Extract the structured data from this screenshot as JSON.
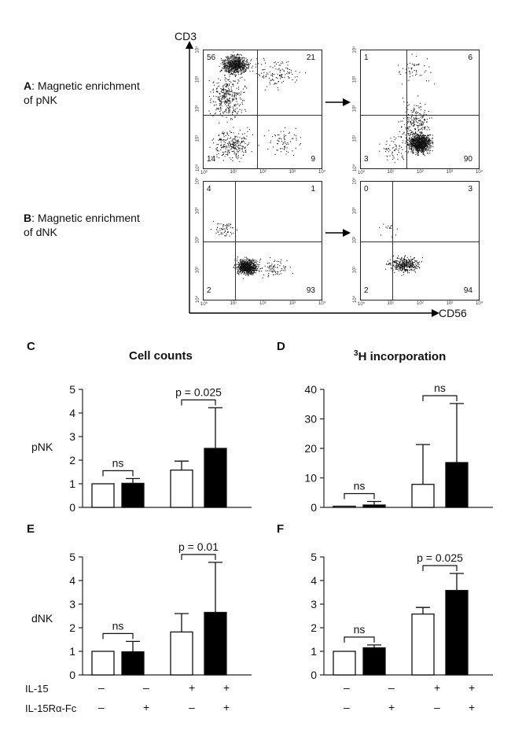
{
  "flow": {
    "y_axis_label": "CD3",
    "x_axis_label": "CD56",
    "row_a_letter": "A",
    "row_a_text_1": ": Magnetic enrichment",
    "row_a_text_2": "of pNK",
    "row_b_letter": "B",
    "row_b_text_1": ": Magnetic enrichment",
    "row_b_text_2": "of dNK",
    "tick_labels": [
      "10⁰",
      "10¹",
      "10²",
      "10³",
      "10⁴"
    ],
    "plots": [
      {
        "quadrants": {
          "ul": "56",
          "ur": "21",
          "ll": "14",
          "lr": "9"
        }
      },
      {
        "quadrants": {
          "ul": "1",
          "ur": "6",
          "ll": "3",
          "lr": "90"
        }
      },
      {
        "quadrants": {
          "ul": "4",
          "ur": "1",
          "ll": "2",
          "lr": "93"
        }
      },
      {
        "quadrants": {
          "ul": "0",
          "ur": "3",
          "ll": "2",
          "lr": "94"
        }
      }
    ]
  },
  "panels": {
    "C": {
      "letter": "C",
      "title": "Cell counts"
    },
    "D": {
      "letter": "D",
      "title_sup": "3",
      "title_rest": "H incorporation"
    },
    "E": {
      "letter": "E"
    },
    "F": {
      "letter": "F"
    }
  },
  "row_labels": {
    "pnk": "pNK",
    "dnk": "dNK"
  },
  "treatments": {
    "il15_label": "IL-15",
    "il15ra_label": "IL-15Rα-Fc",
    "il15_signs": [
      "–",
      "–",
      "+",
      "+"
    ],
    "il15ra_signs": [
      "–",
      "+",
      "–",
      "+"
    ]
  },
  "chart_data": [
    {
      "panel": "C",
      "type": "bar",
      "title": "Cell counts",
      "ylabel": "pNK",
      "ylim": [
        0,
        5
      ],
      "yticks": [
        0,
        1,
        2,
        3,
        4,
        5
      ],
      "groups": [
        {
          "bars": [
            {
              "fill": "white",
              "value": 1.0,
              "err": 0.0
            },
            {
              "fill": "black",
              "value": 1.02,
              "err": 0.2
            }
          ],
          "annotation": "ns"
        },
        {
          "bars": [
            {
              "fill": "white",
              "value": 1.58,
              "err": 0.38
            },
            {
              "fill": "black",
              "value": 2.5,
              "err": 1.72
            }
          ],
          "annotation": "p = 0.025"
        }
      ]
    },
    {
      "panel": "D",
      "type": "bar",
      "title": "³H incorporation",
      "ylim": [
        0,
        40
      ],
      "yticks": [
        0,
        10,
        20,
        30,
        40
      ],
      "groups": [
        {
          "bars": [
            {
              "fill": "white",
              "value": 0.4,
              "err": 0.0
            },
            {
              "fill": "black",
              "value": 0.8,
              "err": 1.2
            }
          ],
          "annotation": "ns"
        },
        {
          "bars": [
            {
              "fill": "white",
              "value": 7.8,
              "err": 13.5
            },
            {
              "fill": "black",
              "value": 15.2,
              "err": 20.0
            }
          ],
          "annotation": "ns"
        }
      ]
    },
    {
      "panel": "E",
      "type": "bar",
      "ylabel": "dNK",
      "ylim": [
        0,
        5
      ],
      "yticks": [
        0,
        1,
        2,
        3,
        4,
        5
      ],
      "groups": [
        {
          "bars": [
            {
              "fill": "white",
              "value": 1.0,
              "err": 0.0
            },
            {
              "fill": "black",
              "value": 0.98,
              "err": 0.44
            }
          ],
          "annotation": "ns"
        },
        {
          "bars": [
            {
              "fill": "white",
              "value": 1.82,
              "err": 0.78
            },
            {
              "fill": "black",
              "value": 2.65,
              "err": 2.12
            }
          ],
          "annotation": "p = 0.01"
        }
      ]
    },
    {
      "panel": "F",
      "type": "bar",
      "ylim": [
        0,
        5
      ],
      "yticks": [
        0,
        1,
        2,
        3,
        4,
        5
      ],
      "groups": [
        {
          "bars": [
            {
              "fill": "white",
              "value": 1.0,
              "err": 0.0
            },
            {
              "fill": "black",
              "value": 1.15,
              "err": 0.12
            }
          ],
          "annotation": "ns"
        },
        {
          "bars": [
            {
              "fill": "white",
              "value": 2.58,
              "err": 0.28
            },
            {
              "fill": "black",
              "value": 3.58,
              "err": 0.72
            }
          ],
          "annotation": "p = 0.025"
        }
      ]
    }
  ]
}
